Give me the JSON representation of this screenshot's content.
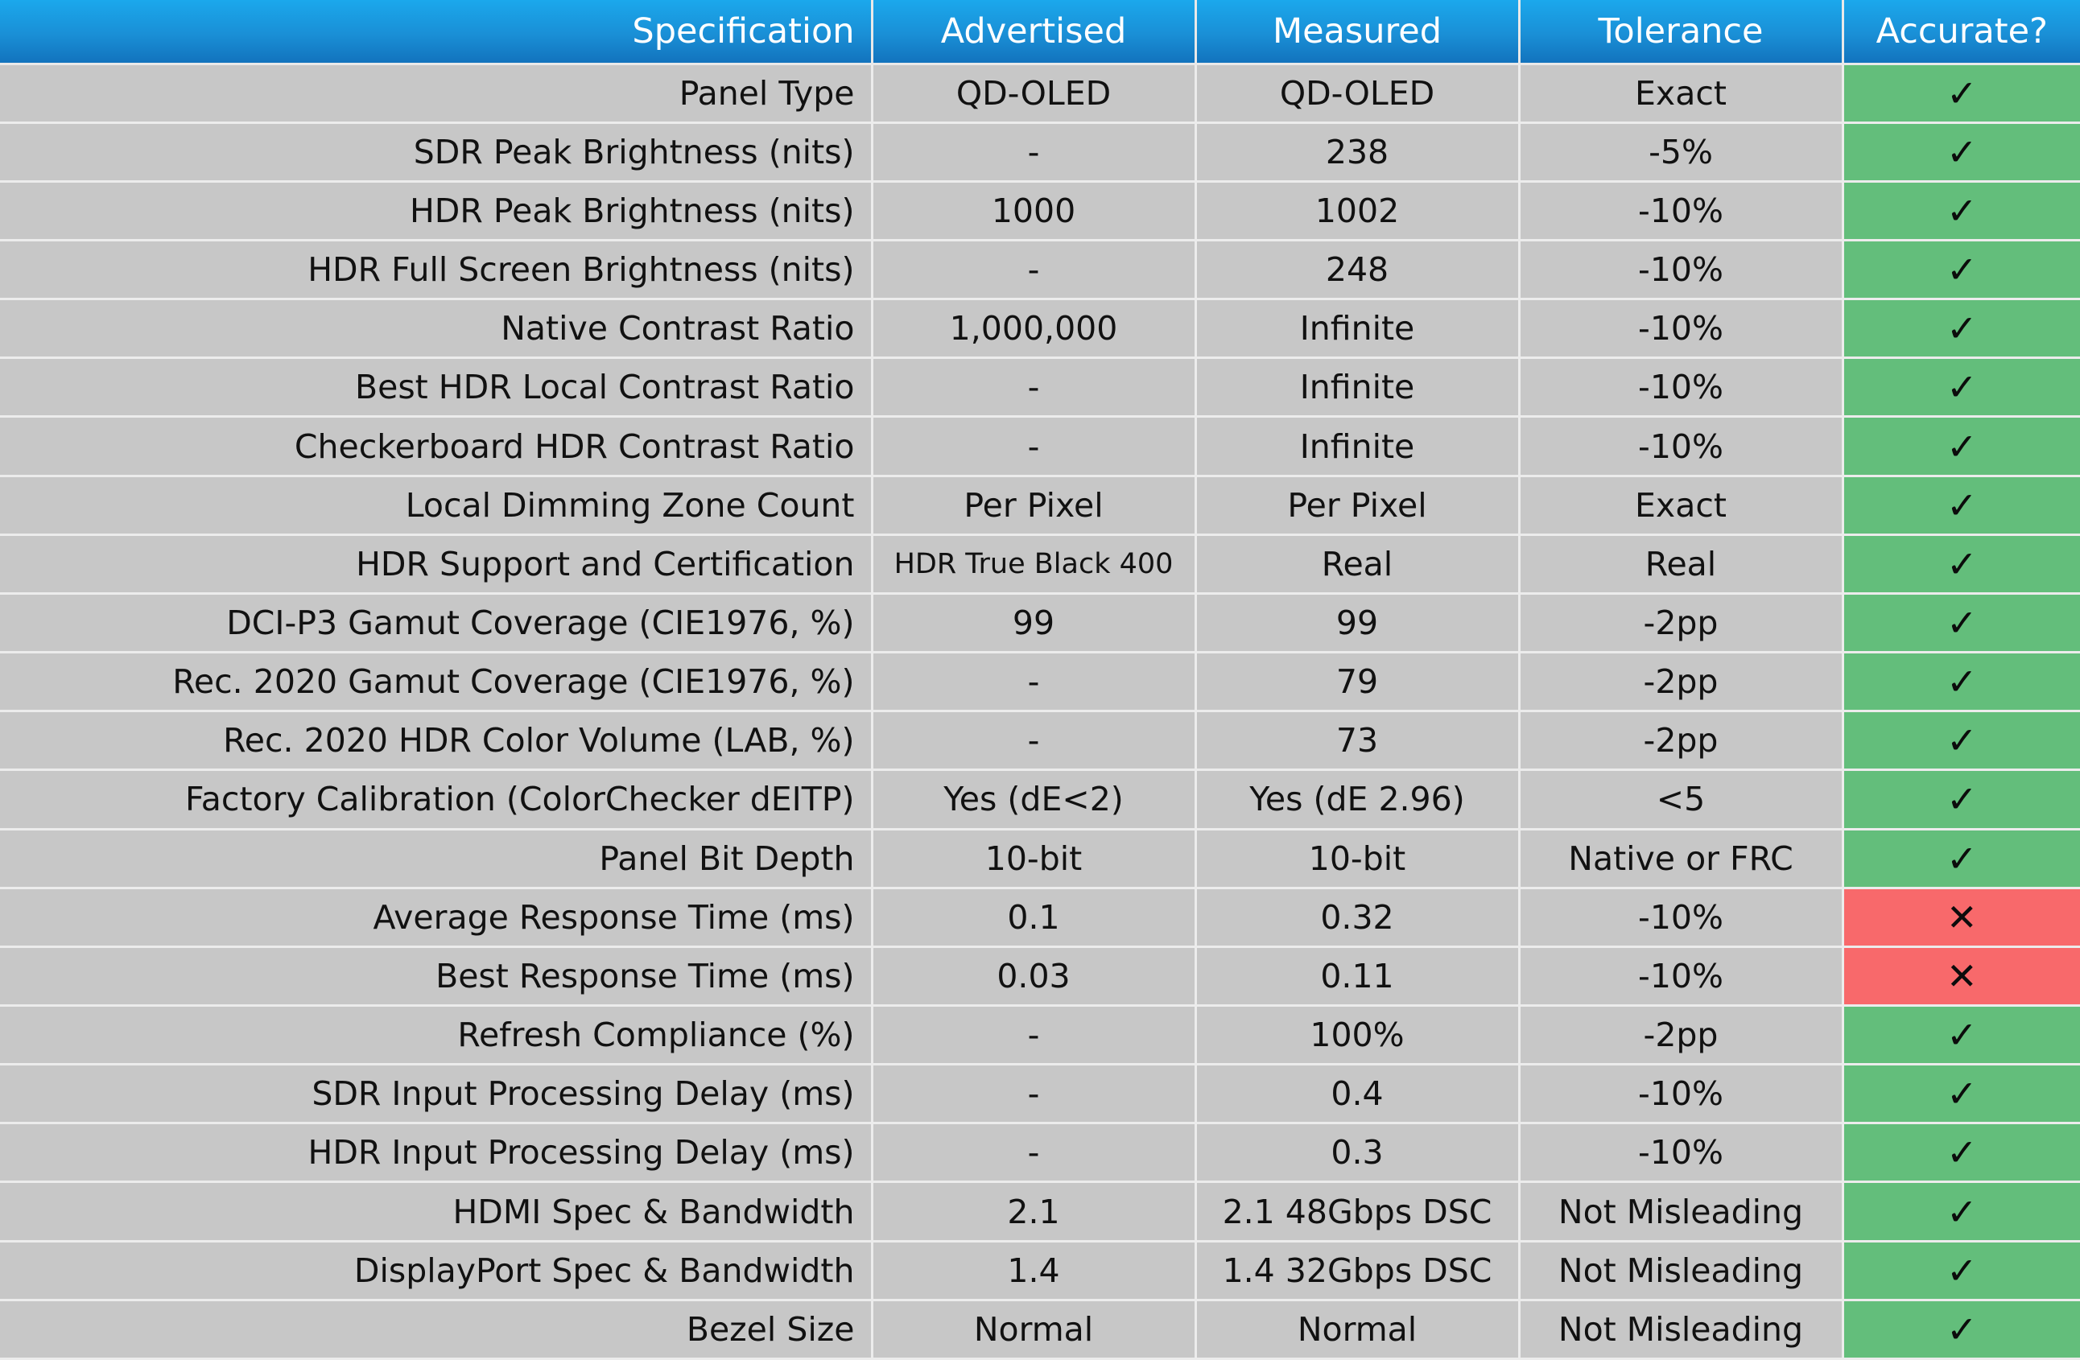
{
  "colors": {
    "header_bg": "#1a8fd6",
    "header_text": "#ffffff",
    "row_bg": "#c7c7c7",
    "pass_bg": "#63be7b",
    "fail_bg": "#f8696b"
  },
  "icons": {
    "pass": "checkmark-icon",
    "fail": "cross-icon"
  },
  "header": {
    "specification": "Specification",
    "advertised": "Advertised",
    "measured": "Measured",
    "tolerance": "Tolerance",
    "accurate": "Accurate?"
  },
  "symbols": {
    "pass": "✓",
    "fail": "✕"
  },
  "rows": [
    {
      "spec": "Panel Type",
      "advertised": "QD-OLED",
      "measured": "QD-OLED",
      "tolerance": "Exact",
      "accurate": "pass"
    },
    {
      "spec": "SDR Peak Brightness (nits)",
      "advertised": "-",
      "measured": "238",
      "tolerance": "-5%",
      "accurate": "pass"
    },
    {
      "spec": "HDR Peak Brightness (nits)",
      "advertised": "1000",
      "measured": "1002",
      "tolerance": "-10%",
      "accurate": "pass"
    },
    {
      "spec": "HDR Full Screen Brightness (nits)",
      "advertised": "-",
      "measured": "248",
      "tolerance": "-10%",
      "accurate": "pass"
    },
    {
      "spec": "Native Contrast Ratio",
      "advertised": "1,000,000",
      "measured": "Infinite",
      "tolerance": "-10%",
      "accurate": "pass"
    },
    {
      "spec": "Best HDR Local Contrast Ratio",
      "advertised": "-",
      "measured": "Infinite",
      "tolerance": "-10%",
      "accurate": "pass"
    },
    {
      "spec": "Checkerboard HDR Contrast Ratio",
      "advertised": "-",
      "measured": "Infinite",
      "tolerance": "-10%",
      "accurate": "pass"
    },
    {
      "spec": "Local Dimming Zone Count",
      "advertised": "Per Pixel",
      "measured": "Per Pixel",
      "tolerance": "Exact",
      "accurate": "pass"
    },
    {
      "spec": "HDR Support and Certification",
      "advertised": "HDR True Black 400",
      "measured": "Real",
      "tolerance": "Real",
      "accurate": "pass",
      "small_advertised": true
    },
    {
      "spec": "DCI-P3 Gamut Coverage (CIE1976, %)",
      "advertised": "99",
      "measured": "99",
      "tolerance": "-2pp",
      "accurate": "pass"
    },
    {
      "spec": "Rec. 2020 Gamut Coverage (CIE1976, %)",
      "advertised": "-",
      "measured": "79",
      "tolerance": "-2pp",
      "accurate": "pass"
    },
    {
      "spec": "Rec. 2020 HDR Color Volume (LAB, %)",
      "advertised": "-",
      "measured": "73",
      "tolerance": "-2pp",
      "accurate": "pass"
    },
    {
      "spec": "Factory Calibration (ColorChecker dEITP)",
      "advertised": "Yes (dE<2)",
      "measured": "Yes (dE 2.96)",
      "tolerance": "<5",
      "accurate": "pass"
    },
    {
      "spec": "Panel Bit Depth",
      "advertised": "10-bit",
      "measured": "10-bit",
      "tolerance": "Native or FRC",
      "accurate": "pass"
    },
    {
      "spec": "Average Response Time (ms)",
      "advertised": "0.1",
      "measured": "0.32",
      "tolerance": "-10%",
      "accurate": "fail"
    },
    {
      "spec": "Best Response Time (ms)",
      "advertised": "0.03",
      "measured": "0.11",
      "tolerance": "-10%",
      "accurate": "fail"
    },
    {
      "spec": "Refresh Compliance (%)",
      "advertised": "-",
      "measured": "100%",
      "tolerance": "-2pp",
      "accurate": "pass"
    },
    {
      "spec": "SDR Input Processing Delay (ms)",
      "advertised": "-",
      "measured": "0.4",
      "tolerance": "-10%",
      "accurate": "pass"
    },
    {
      "spec": "HDR Input Processing Delay (ms)",
      "advertised": "-",
      "measured": "0.3",
      "tolerance": "-10%",
      "accurate": "pass"
    },
    {
      "spec": "HDMI Spec & Bandwidth",
      "advertised": "2.1",
      "measured": "2.1 48Gbps DSC",
      "tolerance": "Not Misleading",
      "accurate": "pass"
    },
    {
      "spec": "DisplayPort Spec & Bandwidth",
      "advertised": "1.4",
      "measured": "1.4 32Gbps DSC",
      "tolerance": "Not Misleading",
      "accurate": "pass"
    },
    {
      "spec": "Bezel Size",
      "advertised": "Normal",
      "measured": "Normal",
      "tolerance": "Not Misleading",
      "accurate": "pass"
    }
  ]
}
